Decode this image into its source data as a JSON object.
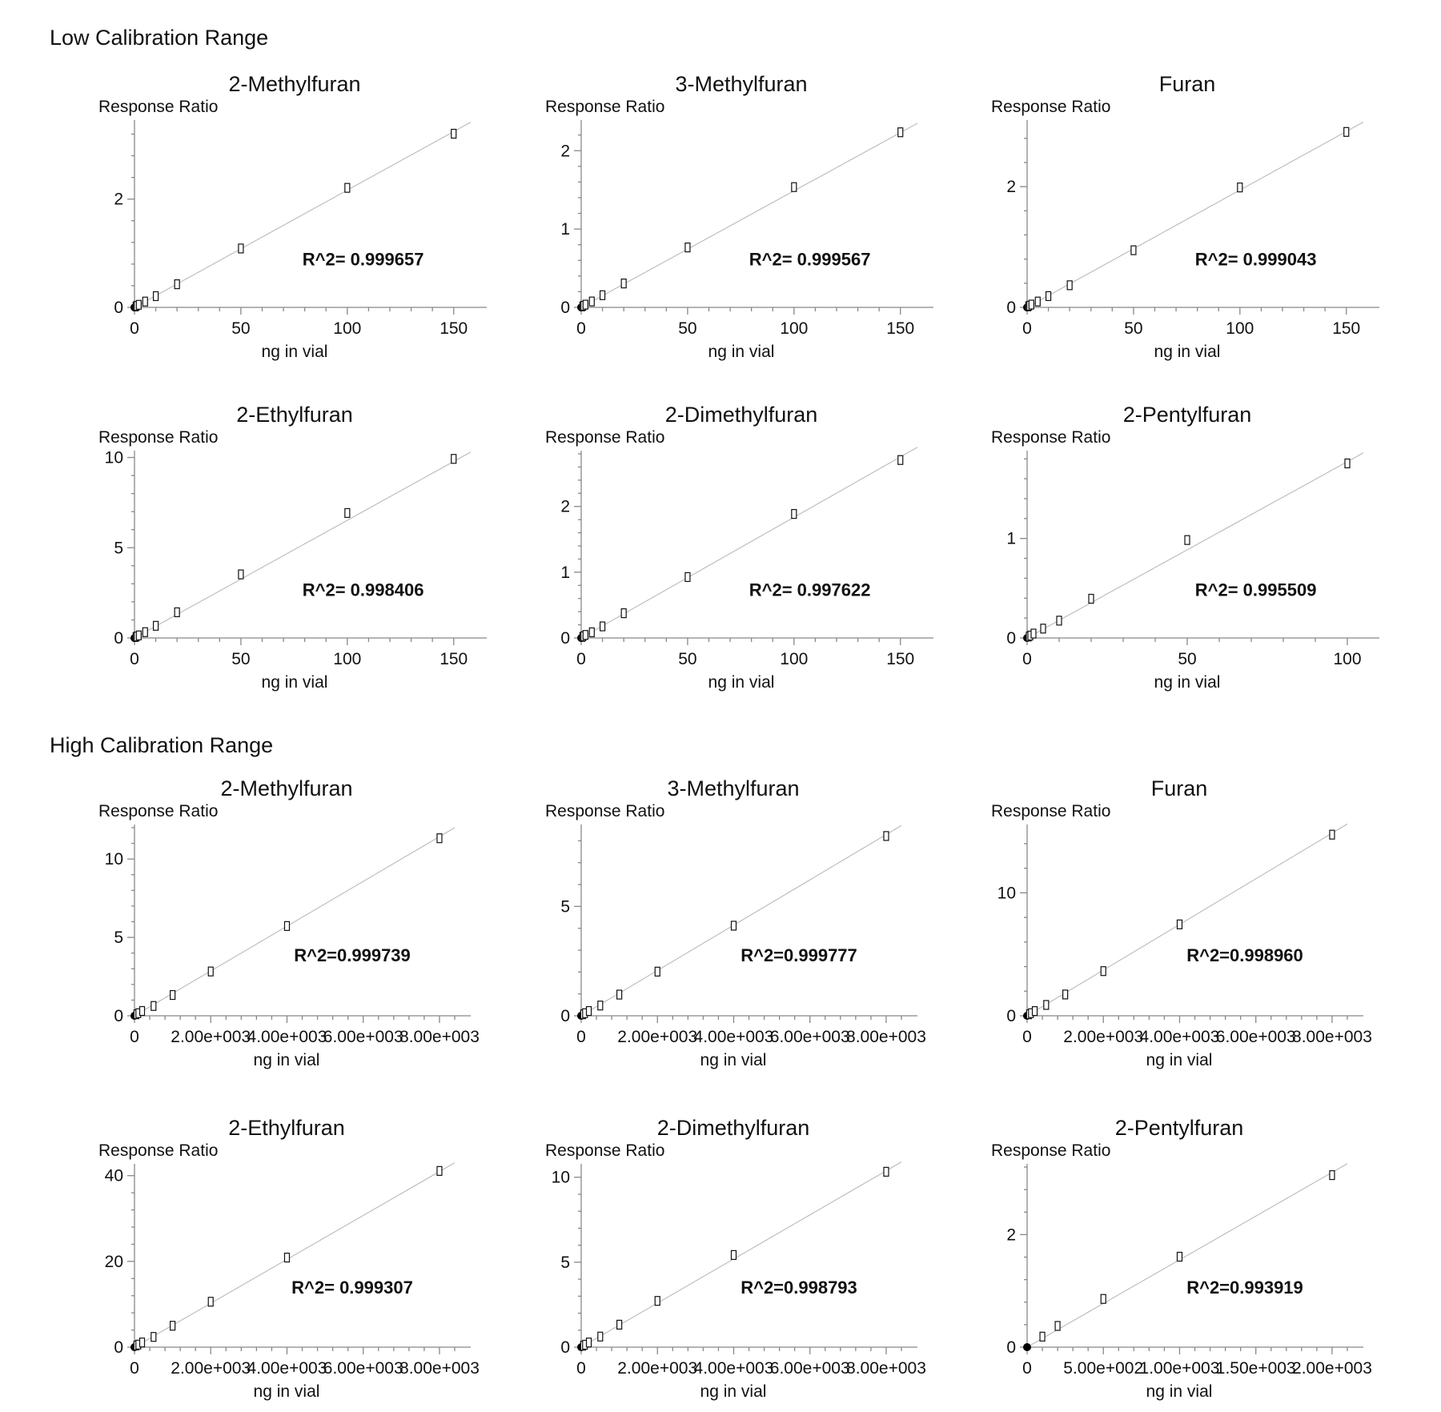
{
  "sections": {
    "low": {
      "title": "Low Calibration Range"
    },
    "high": {
      "title": "High Calibration Range"
    }
  },
  "chart_data": [
    {
      "section": "low",
      "type": "scatter",
      "title": "2-Methylfuran",
      "ylabel": "Response Ratio",
      "xlabel": "ng in vial",
      "annotation": "R^2= 0.999657",
      "x_ticks": [
        0,
        50,
        100,
        150
      ],
      "x_tick_labels": [
        "0",
        "50",
        "100",
        "150"
      ],
      "y_ticks": [
        0,
        2
      ],
      "y_tick_labels": [
        "0",
        "2"
      ],
      "xlim": [
        0,
        158
      ],
      "ylim": [
        0,
        3.4
      ],
      "fit": {
        "x": [
          0,
          158
        ],
        "y": [
          0,
          3.42
        ]
      },
      "x": [
        0,
        0.5,
        1,
        2,
        5,
        10,
        20,
        50,
        100,
        150
      ],
      "y": [
        0,
        0.01,
        0.02,
        0.04,
        0.1,
        0.2,
        0.42,
        1.08,
        2.2,
        3.2
      ]
    },
    {
      "section": "low",
      "type": "scatter",
      "title": "3-Methylfuran",
      "ylabel": "Response Ratio",
      "xlabel": "ng in vial",
      "annotation": "R^2= 0.999567",
      "x_ticks": [
        0,
        50,
        100,
        150
      ],
      "x_tick_labels": [
        "0",
        "50",
        "100",
        "150"
      ],
      "y_ticks": [
        0,
        1,
        2
      ],
      "y_tick_labels": [
        "0",
        "1",
        "2"
      ],
      "xlim": [
        0,
        158
      ],
      "ylim": [
        0,
        2.35
      ],
      "fit": {
        "x": [
          0,
          158
        ],
        "y": [
          0,
          2.35
        ]
      },
      "x": [
        0,
        0.5,
        1,
        2,
        5,
        10,
        20,
        50,
        100,
        150
      ],
      "y": [
        0,
        0.008,
        0.015,
        0.03,
        0.07,
        0.15,
        0.3,
        0.76,
        1.53,
        2.23
      ]
    },
    {
      "section": "low",
      "type": "scatter",
      "title": "Furan",
      "ylabel": "Response Ratio",
      "xlabel": "ng in vial",
      "annotation": "R^2= 0.999043",
      "x_ticks": [
        0,
        50,
        100,
        150
      ],
      "x_tick_labels": [
        "0",
        "50",
        "100",
        "150"
      ],
      "y_ticks": [
        0,
        2
      ],
      "y_tick_labels": [
        "0",
        "2"
      ],
      "xlim": [
        0,
        158
      ],
      "ylim": [
        0,
        3.05
      ],
      "fit": {
        "x": [
          0,
          158
        ],
        "y": [
          0,
          3.07
        ]
      },
      "x": [
        0,
        0.5,
        1,
        2,
        5,
        10,
        20,
        50,
        100,
        150
      ],
      "y": [
        0,
        0.01,
        0.02,
        0.04,
        0.09,
        0.18,
        0.36,
        0.94,
        1.98,
        2.9
      ]
    },
    {
      "section": "low",
      "type": "scatter",
      "title": "2-Ethylfuran",
      "ylabel": "Response Ratio",
      "xlabel": "ng in vial",
      "annotation": "R^2= 0.998406",
      "x_ticks": [
        0,
        50,
        100,
        150
      ],
      "x_tick_labels": [
        "0",
        "50",
        "100",
        "150"
      ],
      "y_ticks": [
        0,
        5,
        10
      ],
      "y_tick_labels": [
        "0",
        "5",
        "10"
      ],
      "xlim": [
        0,
        158
      ],
      "ylim": [
        0,
        10.2
      ],
      "fit": {
        "x": [
          0,
          158
        ],
        "y": [
          0,
          10.3
        ]
      },
      "x": [
        0,
        0.5,
        1,
        2,
        5,
        10,
        20,
        50,
        100,
        150
      ],
      "y": [
        0,
        0.03,
        0.06,
        0.12,
        0.3,
        0.65,
        1.4,
        3.5,
        6.9,
        9.9
      ]
    },
    {
      "section": "low",
      "type": "scatter",
      "title": "2-Dimethylfuran",
      "ylabel": "Response Ratio",
      "xlabel": "ng in vial",
      "annotation": "R^2= 0.997622",
      "x_ticks": [
        0,
        50,
        100,
        150
      ],
      "x_tick_labels": [
        "0",
        "50",
        "100",
        "150"
      ],
      "y_ticks": [
        0,
        1,
        2
      ],
      "y_tick_labels": [
        "0",
        "1",
        "2"
      ],
      "xlim": [
        0,
        158
      ],
      "ylim": [
        0,
        2.8
      ],
      "fit": {
        "x": [
          0,
          158
        ],
        "y": [
          0,
          2.9
        ]
      },
      "x": [
        0,
        0.5,
        1,
        2,
        5,
        10,
        20,
        50,
        100,
        150
      ],
      "y": [
        0,
        0.01,
        0.02,
        0.04,
        0.08,
        0.17,
        0.37,
        0.92,
        1.88,
        2.7
      ]
    },
    {
      "section": "low",
      "type": "scatter",
      "title": "2-Pentylfuran",
      "ylabel": "Response Ratio",
      "xlabel": "ng in vial",
      "annotation": "R^2= 0.995509",
      "x_ticks": [
        0,
        50,
        100
      ],
      "x_tick_labels": [
        "0",
        "50",
        "100"
      ],
      "y_ticks": [
        0,
        1
      ],
      "y_tick_labels": [
        "0",
        "1"
      ],
      "xlim": [
        0,
        105
      ],
      "ylim": [
        0,
        1.85
      ],
      "fit": {
        "x": [
          0,
          105
        ],
        "y": [
          0,
          1.86
        ]
      },
      "x": [
        0,
        0.5,
        1,
        2,
        5,
        10,
        20,
        50,
        100
      ],
      "y": [
        0,
        0.01,
        0.02,
        0.04,
        0.09,
        0.17,
        0.39,
        0.98,
        1.75
      ]
    },
    {
      "section": "high",
      "type": "scatter",
      "title": "2-Methylfuran",
      "ylabel": "Response Ratio",
      "xlabel": "ng in vial",
      "annotation": "R^2=0.999739",
      "x_ticks": [
        0,
        2000,
        4000,
        6000,
        8000
      ],
      "x_tick_labels": [
        "0",
        "2.00e+003",
        "4.00e+003",
        "6.00e+003",
        "8.00e+003"
      ],
      "y_ticks": [
        0,
        5,
        10
      ],
      "y_tick_labels": [
        "0",
        "5",
        "10"
      ],
      "xlim": [
        0,
        8400
      ],
      "ylim": [
        0,
        12
      ],
      "fit": {
        "x": [
          0,
          8400
        ],
        "y": [
          0,
          12
        ]
      },
      "x": [
        0,
        50,
        100,
        200,
        500,
        1000,
        2000,
        4000,
        8000
      ],
      "y": [
        0,
        0.07,
        0.14,
        0.28,
        0.6,
        1.3,
        2.8,
        5.7,
        11.3
      ]
    },
    {
      "section": "high",
      "type": "scatter",
      "title": "3-Methylfuran",
      "ylabel": "Response Ratio",
      "xlabel": "ng in vial",
      "annotation": "R^2=0.999777",
      "x_ticks": [
        0,
        2000,
        4000,
        6000,
        8000
      ],
      "x_tick_labels": [
        "0",
        "2.00e+003",
        "4.00e+003",
        "6.00e+003",
        "8.00e+003"
      ],
      "y_ticks": [
        0,
        5
      ],
      "y_tick_labels": [
        "0",
        "5"
      ],
      "xlim": [
        0,
        8400
      ],
      "ylim": [
        0,
        8.6
      ],
      "fit": {
        "x": [
          0,
          8400
        ],
        "y": [
          0,
          8.7
        ]
      },
      "x": [
        0,
        50,
        100,
        200,
        500,
        1000,
        2000,
        4000,
        8000
      ],
      "y": [
        0,
        0.05,
        0.1,
        0.2,
        0.45,
        0.95,
        2.0,
        4.1,
        8.2
      ]
    },
    {
      "section": "high",
      "type": "scatter",
      "title": "Furan",
      "ylabel": "Response Ratio",
      "xlabel": "ng in vial",
      "annotation": "R^2=0.998960",
      "x_ticks": [
        0,
        2000,
        4000,
        6000,
        8000
      ],
      "x_tick_labels": [
        "0",
        "2.00e+003",
        "4.00e+003",
        "6.00e+003",
        "8.00e+003"
      ],
      "y_ticks": [
        0,
        10
      ],
      "y_tick_labels": [
        "0",
        "10"
      ],
      "xlim": [
        0,
        8400
      ],
      "ylim": [
        0,
        15.3
      ],
      "fit": {
        "x": [
          0,
          8400
        ],
        "y": [
          0,
          15.6
        ]
      },
      "x": [
        0,
        50,
        100,
        200,
        500,
        1000,
        2000,
        4000,
        8000
      ],
      "y": [
        0,
        0.09,
        0.18,
        0.35,
        0.85,
        1.7,
        3.6,
        7.4,
        14.7
      ]
    },
    {
      "section": "high",
      "type": "scatter",
      "title": "2-Ethylfuran",
      "ylabel": "Response Ratio",
      "xlabel": "ng in vial",
      "annotation": "R^2= 0.999307",
      "x_ticks": [
        0,
        2000,
        4000,
        6000,
        8000
      ],
      "x_tick_labels": [
        "0",
        "2.00e+003",
        "4.00e+003",
        "6.00e+003",
        "8.00e+003"
      ],
      "y_ticks": [
        0,
        20,
        40
      ],
      "y_tick_labels": [
        "0",
        "20",
        "40"
      ],
      "xlim": [
        0,
        8400
      ],
      "ylim": [
        0,
        42
      ],
      "fit": {
        "x": [
          0,
          8400
        ],
        "y": [
          0,
          43
        ]
      },
      "x": [
        0,
        50,
        100,
        200,
        500,
        1000,
        2000,
        4000,
        8000
      ],
      "y": [
        0,
        0.3,
        0.5,
        1.0,
        2.3,
        4.9,
        10.5,
        20.8,
        41.0
      ]
    },
    {
      "section": "high",
      "type": "scatter",
      "title": "2-Dimethylfuran",
      "ylabel": "Response Ratio",
      "xlabel": "ng in vial",
      "annotation": "R^2=0.998793",
      "x_ticks": [
        0,
        2000,
        4000,
        6000,
        8000
      ],
      "x_tick_labels": [
        "0",
        "2.00e+003",
        "4.00e+003",
        "6.00e+003",
        "8.00e+003"
      ],
      "y_ticks": [
        0,
        5,
        10
      ],
      "y_tick_labels": [
        "0",
        "5",
        "10"
      ],
      "xlim": [
        0,
        8400
      ],
      "ylim": [
        0,
        10.6
      ],
      "fit": {
        "x": [
          0,
          8400
        ],
        "y": [
          0,
          10.9
        ]
      },
      "x": [
        0,
        50,
        100,
        200,
        500,
        1000,
        2000,
        4000,
        8000
      ],
      "y": [
        0,
        0.06,
        0.12,
        0.25,
        0.6,
        1.3,
        2.7,
        5.4,
        10.3
      ]
    },
    {
      "section": "high",
      "type": "scatter",
      "title": "2-Pentylfuran",
      "ylabel": "Response Ratio",
      "xlabel": "ng in vial",
      "annotation": "R^2=0.993919",
      "x_ticks": [
        0,
        500,
        1000,
        1500,
        2000
      ],
      "x_tick_labels": [
        "0",
        "5.00e+002",
        "1.00e+003",
        "1.50e+003",
        "2.00e+003"
      ],
      "y_ticks": [
        0,
        2
      ],
      "y_tick_labels": [
        "0",
        "2"
      ],
      "xlim": [
        0,
        2100
      ],
      "ylim": [
        0,
        3.2
      ],
      "fit": {
        "x": [
          0,
          2100
        ],
        "y": [
          0,
          3.26
        ]
      },
      "x": [
        0,
        100,
        200,
        500,
        1000,
        2000
      ],
      "y": [
        0,
        0.18,
        0.37,
        0.85,
        1.6,
        3.05
      ]
    }
  ]
}
